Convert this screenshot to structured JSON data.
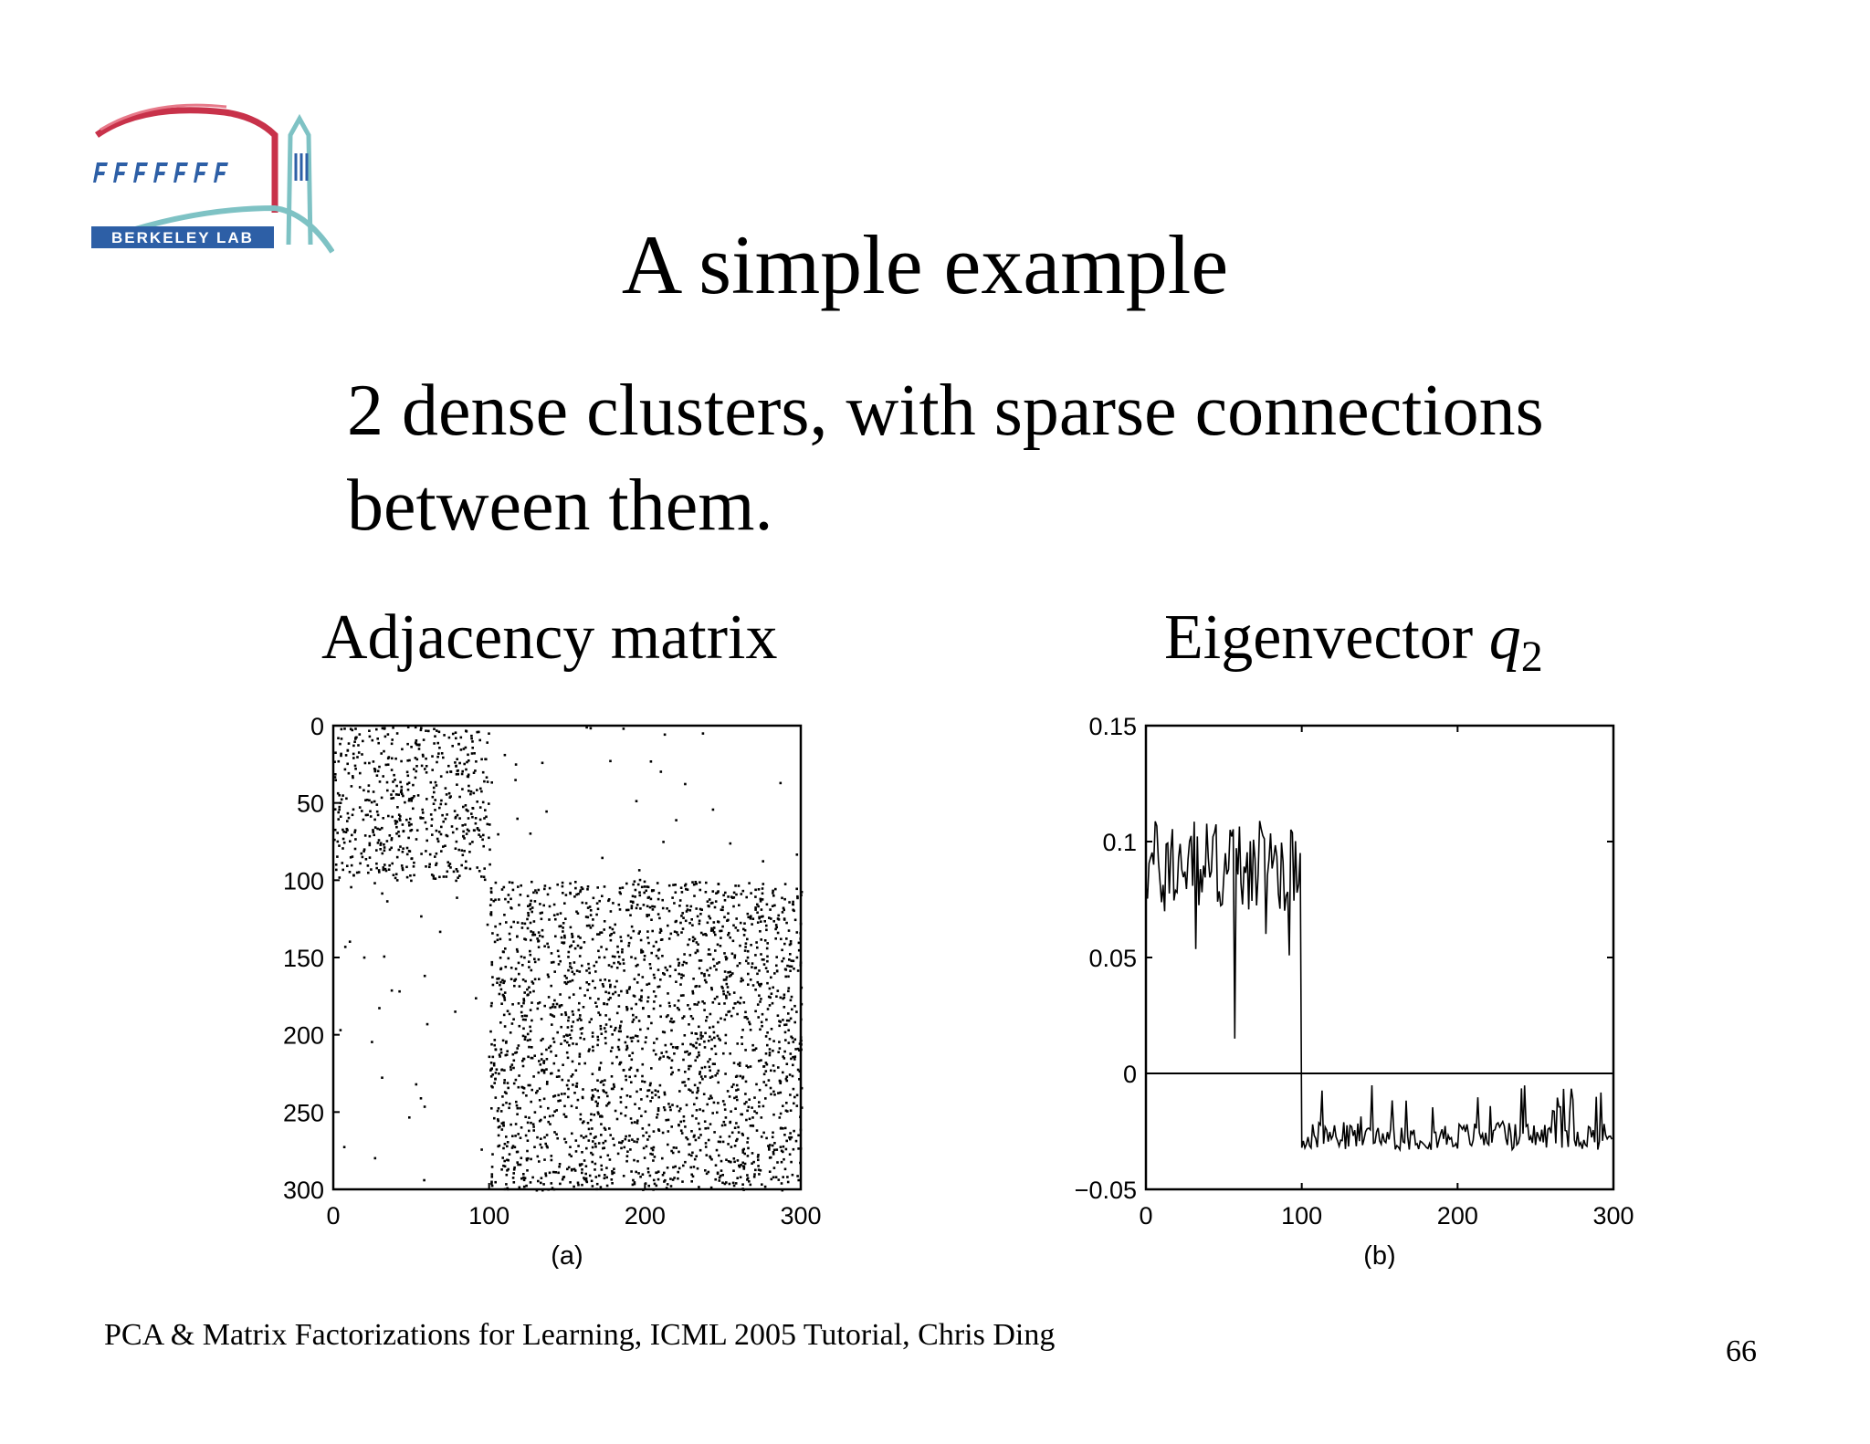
{
  "slide": {
    "logo": {
      "text": "BERKELEY LAB",
      "icon": "berkeley-lab-logo",
      "colors": {
        "arch": "#c8324a",
        "bridge": "#7ec2c4",
        "band": "#2d5fa6",
        "letters": "#2d5fa6"
      }
    },
    "title": "A simple example",
    "subtitle": "2 dense clusters, with sparse connections between them.",
    "footer": "PCA & Matrix Factorizations for Learning, ICML 2005 Tutorial, Chris Ding",
    "page_number": "66"
  },
  "chart_data": [
    {
      "type": "scatter",
      "title": "Adjacency matrix",
      "sublabel": "(a)",
      "matrix_size": 300,
      "clusters": [
        {
          "rows": [
            0,
            100
          ],
          "cols": [
            0,
            100
          ],
          "density": "dense"
        },
        {
          "rows": [
            100,
            300
          ],
          "cols": [
            100,
            300
          ],
          "density": "dense"
        }
      ],
      "off_diagonal": "sparse",
      "xlim": [
        0,
        300
      ],
      "ylim": [
        300,
        0
      ],
      "xticks": [
        "0",
        "100",
        "200",
        "300"
      ],
      "yticks": [
        "0",
        "50",
        "100",
        "150",
        "200",
        "250",
        "300"
      ],
      "marker_color": "#000000"
    },
    {
      "type": "line",
      "title": "Eigenvector",
      "title_symbol": "q",
      "title_subscript": "2",
      "sublabel": "(b)",
      "xlim": [
        0,
        300
      ],
      "ylim": [
        -0.05,
        0.15
      ],
      "xticks": [
        "0",
        "100",
        "200",
        "300"
      ],
      "yticks": [
        "0.15",
        "0.1",
        "0.05",
        "0",
        "−0.05"
      ],
      "zero_line": true,
      "series": [
        {
          "segments": [
            {
              "x": [
                0,
                100
              ],
              "mean": 0.09,
              "spread": 0.02,
              "min": 0.015,
              "max": 0.125
            },
            {
              "x": [
                100,
                300
              ],
              "mean": -0.027,
              "spread": 0.006,
              "max": -0.005
            }
          ]
        }
      ]
    }
  ]
}
